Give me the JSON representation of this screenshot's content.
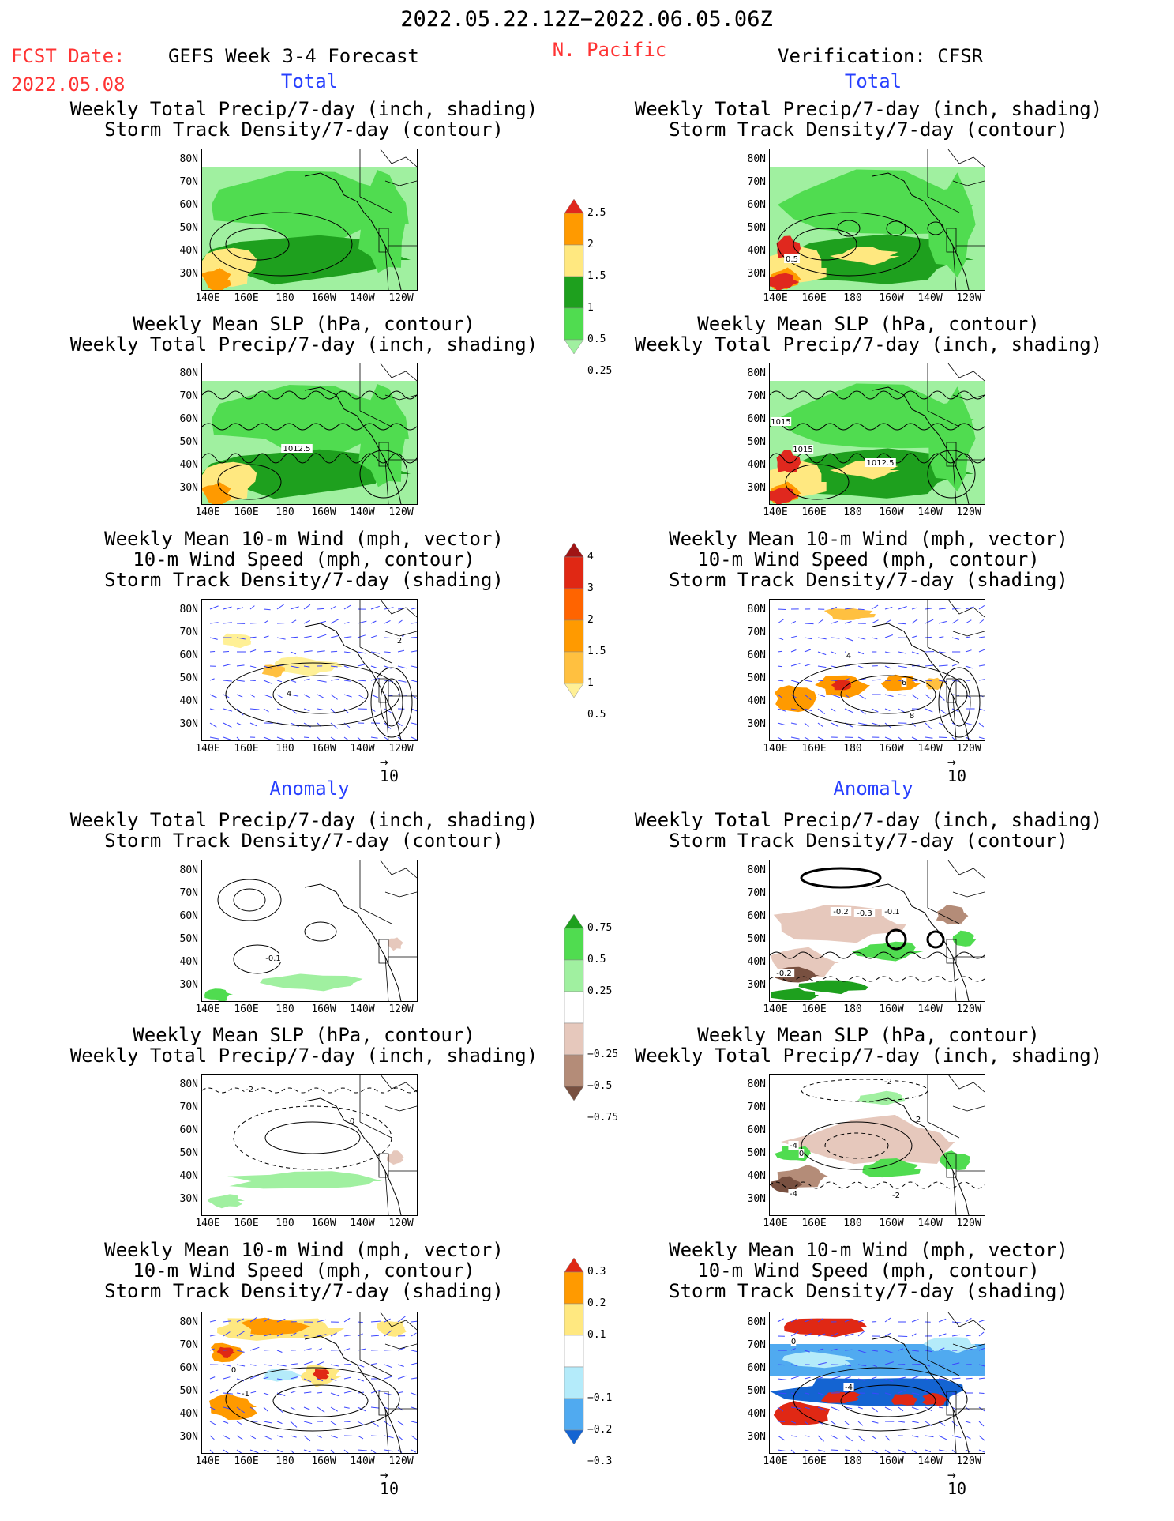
{
  "header": {
    "date_range": "2022.05.22.12Z−2022.06.05.06Z",
    "fcst_label": "FCST Date:",
    "fcst_date": "2022.05.08",
    "forecast_title": "GEFS Week 3-4 Forecast",
    "region": "N. Pacific",
    "verification": "Verification: CFSR"
  },
  "sections": {
    "total": "Total",
    "anomaly": "Anomaly"
  },
  "titles": {
    "precip_track": [
      "Weekly Total Precip/7-day (inch, shading)",
      "Storm Track Density/7-day (contour)"
    ],
    "slp_precip": [
      "Weekly Mean SLP (hPa, contour)",
      "Weekly Total Precip/7-day (inch, shading)"
    ],
    "wind": [
      "Weekly Mean 10-m Wind (mph, vector)",
      "10-m Wind Speed (mph, contour)",
      "Storm Track Density/7-day (shading)"
    ]
  },
  "axes": {
    "lat_labels": [
      "80N",
      "70N",
      "60N",
      "50N",
      "40N",
      "30N"
    ],
    "lon_labels": [
      "140E",
      "160E",
      "180",
      "160W",
      "140W",
      "120W"
    ]
  },
  "vector_scale": "10",
  "contour_labels": {
    "left_total_slp": "1012.5",
    "right_total_precip": "0.5",
    "right_total_slp": [
      "1015",
      "1015",
      "1012.5"
    ],
    "left_anom_precip": "-0.1",
    "right_anom_precip": [
      "-0.2",
      "-0.3",
      "-0.1",
      "-0.2"
    ],
    "left_anom_slp": [
      "-2",
      "0"
    ],
    "right_anom_slp": [
      "-2",
      "2",
      "-4",
      "0",
      "-4",
      "-2"
    ],
    "left_anom_wind": [
      "0",
      "-1"
    ],
    "right_anom_wind": [
      "0",
      "-4"
    ],
    "left_total_wind": [
      "4",
      "2"
    ],
    "right_total_wind": [
      "4",
      "6",
      "8"
    ]
  },
  "colorbars": {
    "precip_total": {
      "labels": [
        "2.5",
        "2",
        "1.5",
        "1",
        "0.5",
        "0.25"
      ],
      "colors": [
        "#e0281e",
        "#ff9a00",
        "#ffe880",
        "#1ea01e",
        "#50dc50",
        "#a0f0a0"
      ]
    },
    "track_total": {
      "labels": [
        "4",
        "3",
        "2",
        "1.5",
        "1",
        "0.5"
      ],
      "colors": [
        "#a01414",
        "#e02814",
        "#ff6400",
        "#ff9a00",
        "#ffc040",
        "#fff096"
      ]
    },
    "precip_anom": {
      "labels": [
        "0.75",
        "0.5",
        "0.25",
        "−0.25",
        "−0.5",
        "−0.75"
      ],
      "colors": [
        "#1ea01e",
        "#50dc50",
        "#a0f0a0",
        "#ffffff",
        "#e6c8bc",
        "#b48c78",
        "#785040"
      ]
    },
    "track_anom": {
      "labels": [
        "0.3",
        "0.2",
        "0.1",
        "−0.1",
        "−0.2",
        "−0.3"
      ],
      "colors": [
        "#e02814",
        "#ff9a00",
        "#ffe880",
        "#ffffff",
        "#b4ebfa",
        "#50aaf0",
        "#1464d2"
      ]
    }
  },
  "colors": {
    "title_red": "#ff3333",
    "section_blue": "#2840ff"
  }
}
